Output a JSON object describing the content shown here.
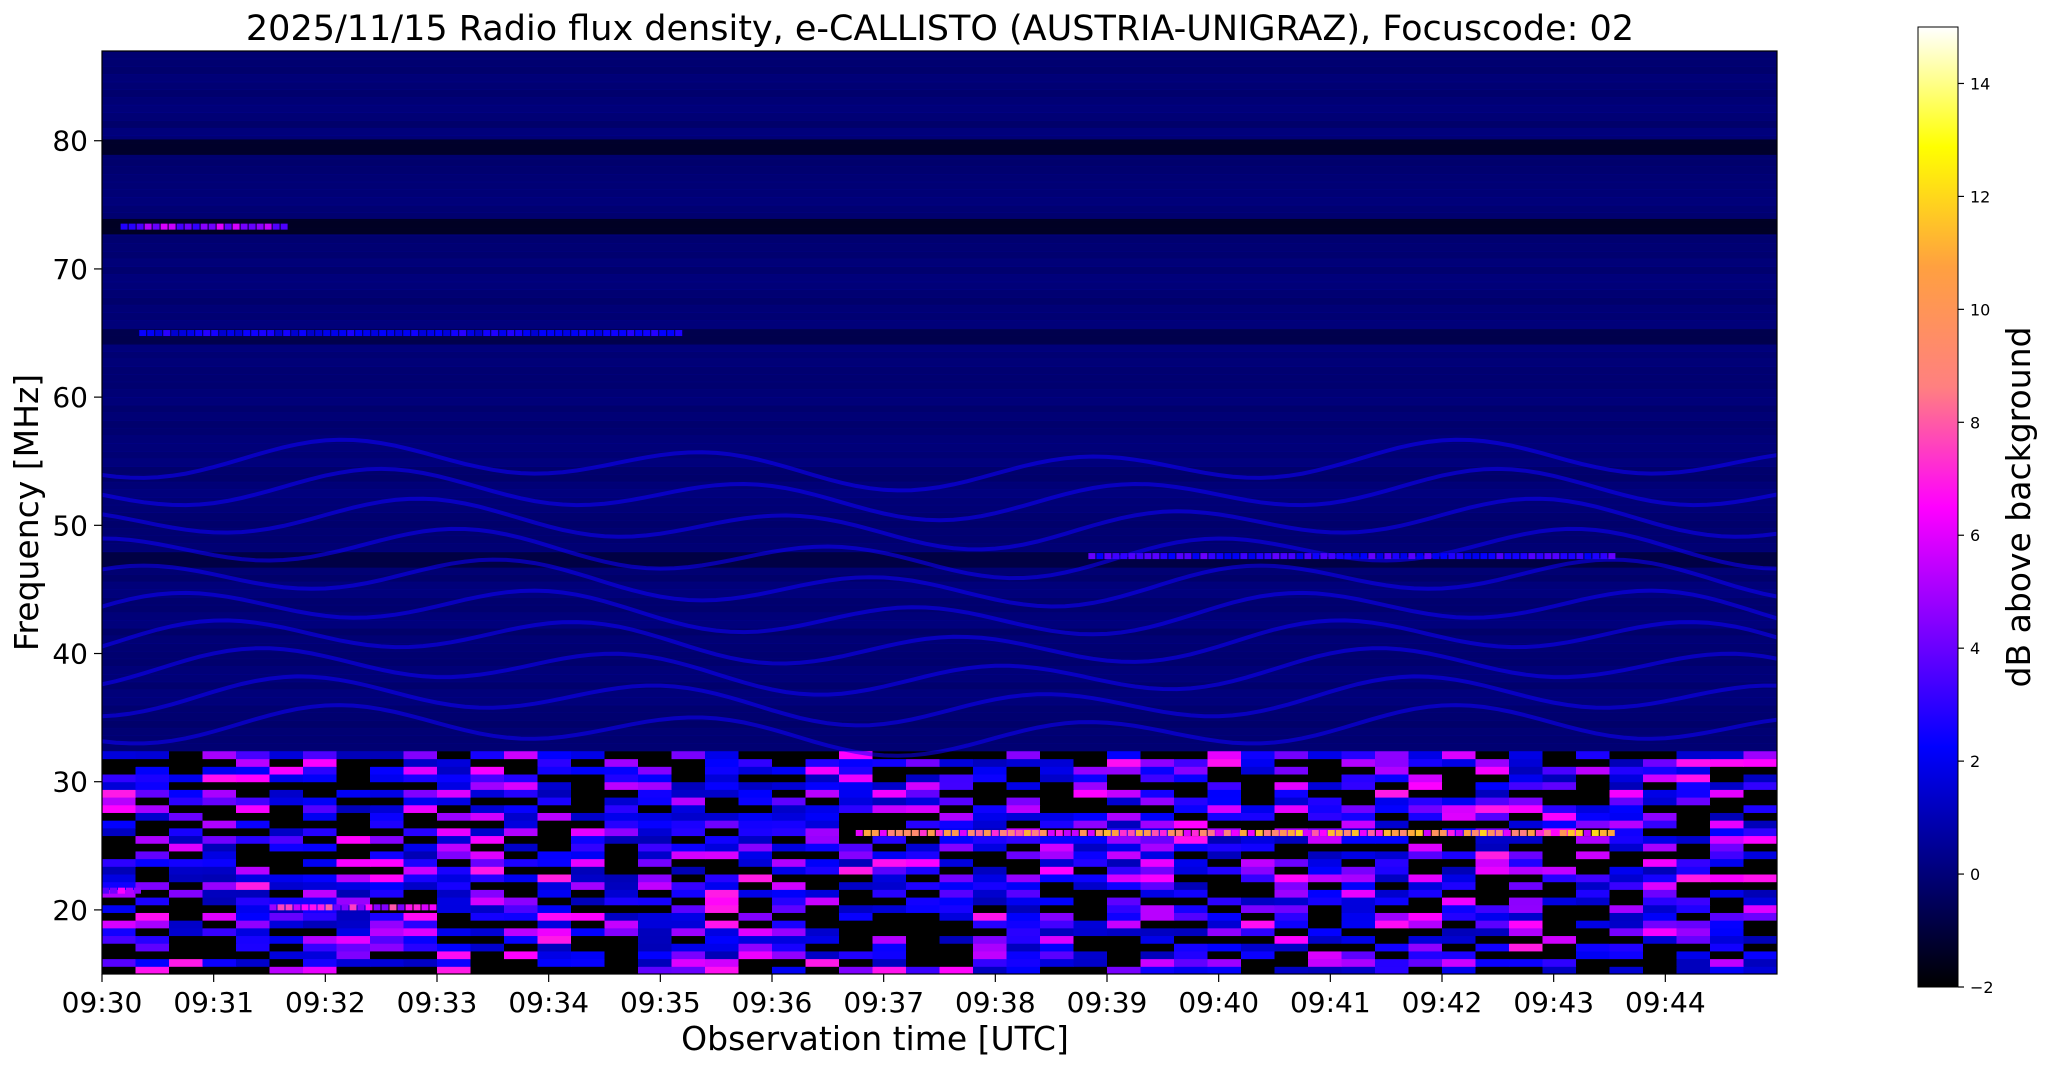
{
  "chart_data": {
    "type": "heatmap",
    "title": "2025/11/15  Radio flux density, e-CALLISTO (AUSTRIA-UNIGRAZ), Focuscode: 02",
    "xlabel": "Observation time [UTC]",
    "ylabel": "Frequency [MHz]",
    "x_range": [
      "09:30",
      "09:45"
    ],
    "x_ticks": [
      "09:30",
      "09:31",
      "09:32",
      "09:33",
      "09:34",
      "09:35",
      "09:36",
      "09:37",
      "09:38",
      "09:39",
      "09:40",
      "09:41",
      "09:42",
      "09:43",
      "09:44"
    ],
    "ylim": [
      15,
      87
    ],
    "y_ticks": [
      20,
      30,
      40,
      50,
      60,
      70,
      80
    ],
    "colorbar": {
      "label": "dB above background",
      "range": [
        -2,
        15
      ],
      "ticks": [
        -2,
        0,
        2,
        4,
        6,
        8,
        10,
        12,
        14
      ],
      "colormap": [
        "#000000",
        "#000080",
        "#0000ff",
        "#8000ff",
        "#ff00ff",
        "#ff8080",
        "#ffa040",
        "#ffff00",
        "#ffffff"
      ]
    },
    "grid": false,
    "features": [
      {
        "kind": "background",
        "value": 0.3,
        "freq_range": [
          33,
          87
        ]
      },
      {
        "kind": "dark_band",
        "freq": 79.5,
        "value": -1.5
      },
      {
        "kind": "dark_band",
        "freq": 73.3,
        "value": -1.6
      },
      {
        "kind": "dark_band",
        "freq": 47.3,
        "value": -1.0
      },
      {
        "kind": "dark_band",
        "freq": 64.7,
        "value": -0.8
      },
      {
        "kind": "band",
        "freq": 73.3,
        "t_start": "09:30:10",
        "t_end": "09:31:40",
        "value": 6
      },
      {
        "kind": "band",
        "freq": 65,
        "t_start": "09:30:20",
        "t_end": "09:35:10",
        "value": 3
      },
      {
        "kind": "band",
        "freq": 47.6,
        "t_start": "09:38:50",
        "t_end": "09:43:30",
        "value": 4
      },
      {
        "kind": "wavy_lines",
        "freq_range": [
          34,
          55
        ],
        "value": 2.5
      },
      {
        "kind": "interference",
        "freq_range": [
          15,
          32
        ],
        "value": 4
      },
      {
        "kind": "band",
        "freq": 26,
        "t_start": "09:36:45",
        "t_end": "09:43:30",
        "value": 12
      },
      {
        "kind": "band",
        "freq": 21.5,
        "t_start": "09:30:00",
        "t_end": "09:30:20",
        "value": 8
      },
      {
        "kind": "band",
        "freq": 20.2,
        "t_start": "09:31:30",
        "t_end": "09:33:00",
        "value": 8
      }
    ]
  }
}
